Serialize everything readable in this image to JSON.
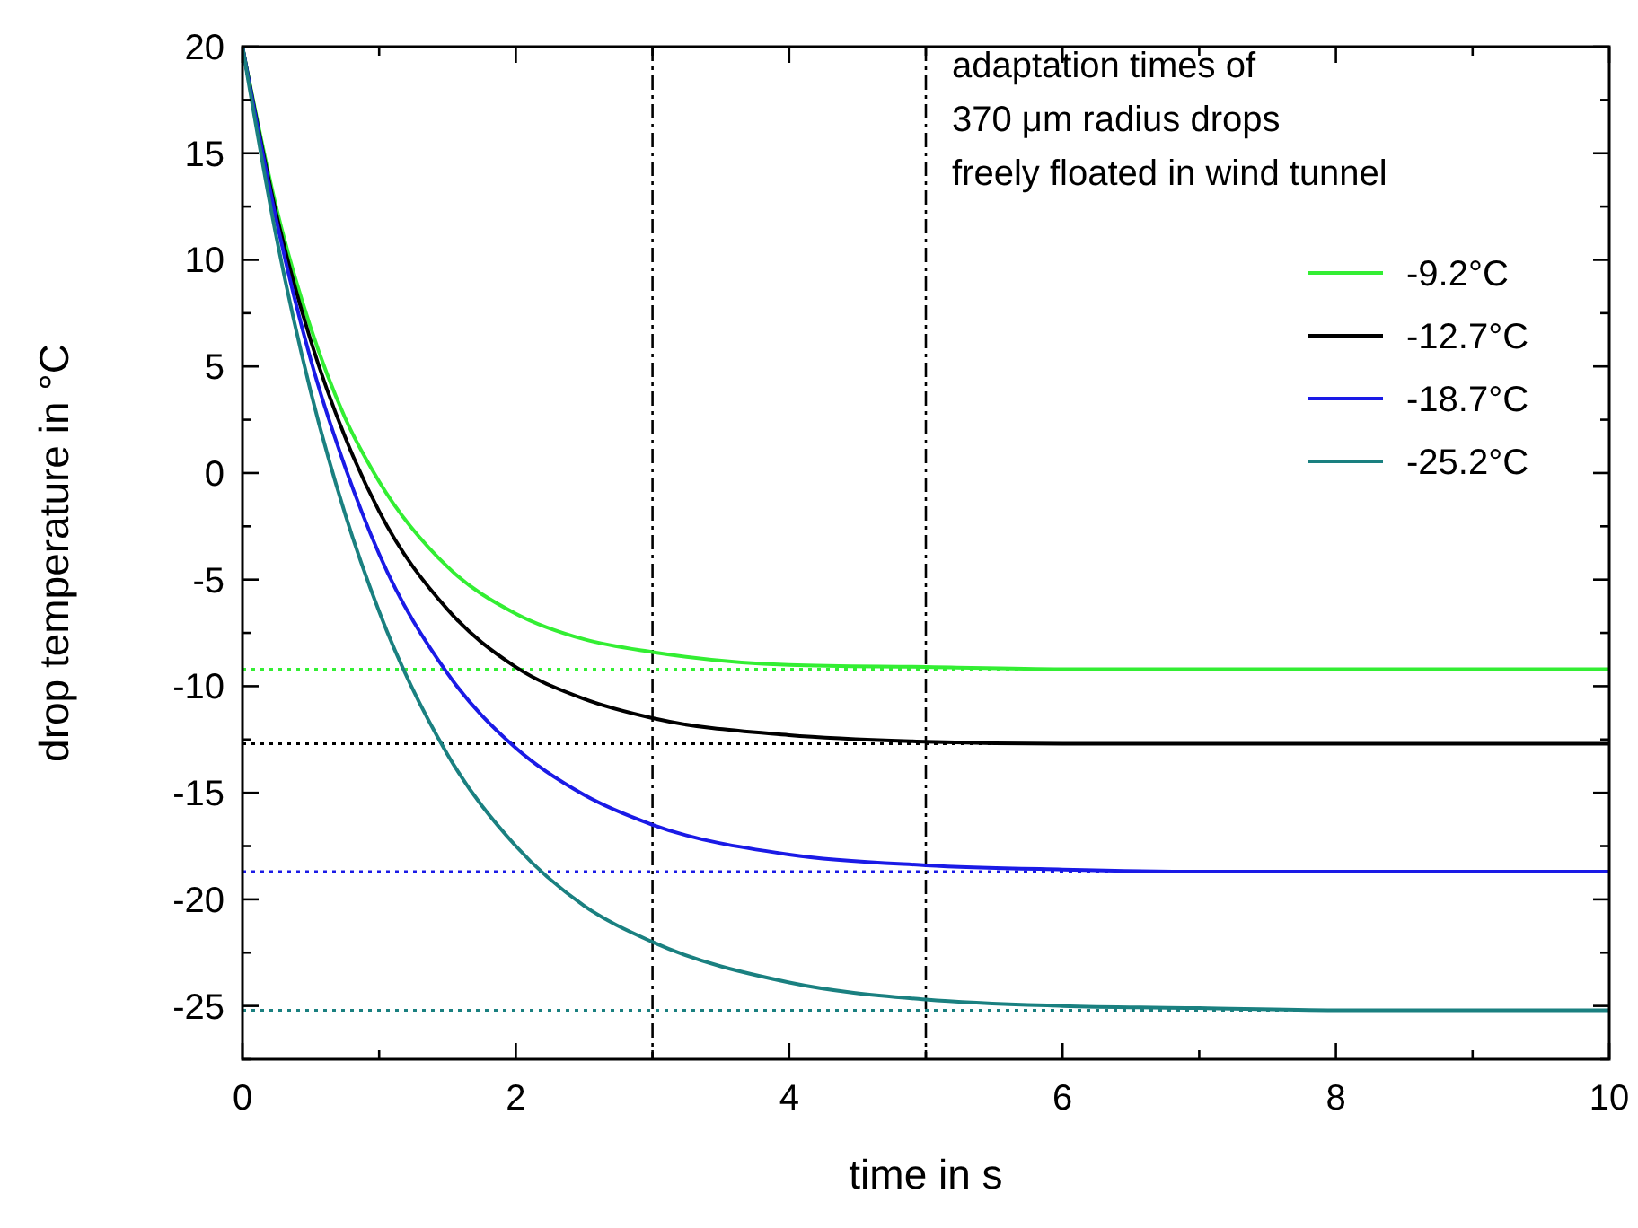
{
  "chart_data": {
    "type": "line",
    "xlabel": "time in s",
    "ylabel": "drop temperature in °C",
    "legend_title": "adaptation times of\n370 μm radius drops\nfreely floated in wind tunnel",
    "legend": "top right",
    "grid": false,
    "marker": "none",
    "line_style": "solid",
    "xlim": [
      0,
      10
    ],
    "ylim": [
      -27.5,
      20
    ],
    "xticks": [
      0,
      {
        "value": 1,
        "label": null
      },
      2,
      {
        "value": 3,
        "label": null
      },
      4,
      {
        "value": 5,
        "label": null
      },
      6,
      {
        "value": 7,
        "label": null
      },
      8,
      {
        "value": 9,
        "label": null
      },
      10
    ],
    "yticks": [
      {
        "value": -27.5,
        "label": null
      },
      -25,
      {
        "value": -22.5,
        "label": null
      },
      -20,
      {
        "value": -17.5,
        "label": null
      },
      -15,
      {
        "value": -12.5,
        "label": null
      },
      -10,
      {
        "value": -7.5,
        "label": null
      },
      -5,
      {
        "value": -2.5,
        "label": null
      },
      0,
      {
        "value": 2.5,
        "label": null
      },
      5,
      {
        "value": 7.5,
        "label": null
      },
      10,
      {
        "value": 12.5,
        "label": null
      },
      15,
      {
        "value": 17.5,
        "label": null
      },
      20
    ],
    "x": [
      0,
      0.25,
      0.5,
      0.75,
      1,
      1.5,
      2,
      2.5,
      3,
      4,
      5,
      6,
      7,
      8,
      10
    ],
    "series": [
      {
        "name": "-9.2°C",
        "color": "#33ee33",
        "values": [
          20,
          12.4,
          6.8,
          2.6,
          -0.4,
          -4.4,
          -6.6,
          -7.8,
          -8.4,
          -9.0,
          -9.1,
          -9.2,
          -9.2,
          -9.2,
          -9.2
        ]
      },
      {
        "name": "-12.7°C",
        "color": "#000000",
        "values": [
          20,
          12.1,
          6.2,
          1.7,
          -1.8,
          -6.4,
          -9.1,
          -10.6,
          -11.5,
          -12.3,
          -12.6,
          -12.7,
          -12.7,
          -12.7,
          -12.7
        ]
      },
      {
        "name": "-18.7°C",
        "color": "#1a1ae6",
        "values": [
          20,
          11.8,
          5.3,
          0.3,
          -3.8,
          -9.4,
          -12.9,
          -15.1,
          -16.5,
          -17.9,
          -18.4,
          -18.6,
          -18.7,
          -18.7,
          -18.7
        ]
      },
      {
        "name": "-25.2°C",
        "color": "#1a8080",
        "values": [
          20,
          11.0,
          3.8,
          -1.9,
          -6.5,
          -13.2,
          -17.5,
          -20.3,
          -22.0,
          -23.9,
          -24.7,
          -25.0,
          -25.1,
          -25.2,
          -25.2
        ]
      }
    ],
    "ref_lines": [
      {
        "axis": "y",
        "value": -9.2,
        "color": "#33ee33",
        "line_style": "dotted"
      },
      {
        "axis": "y",
        "value": -12.7,
        "color": "#000000",
        "line_style": "dotted"
      },
      {
        "axis": "y",
        "value": -18.7,
        "color": "#1a1ae6",
        "line_style": "dotted"
      },
      {
        "axis": "y",
        "value": -25.2,
        "color": "#1a8080",
        "line_style": "dotted"
      },
      {
        "axis": "x",
        "value": 3,
        "color": "#000000",
        "line_style": "dashed"
      },
      {
        "axis": "x",
        "value": 5,
        "color": "#000000",
        "line_style": "dashed"
      }
    ]
  }
}
